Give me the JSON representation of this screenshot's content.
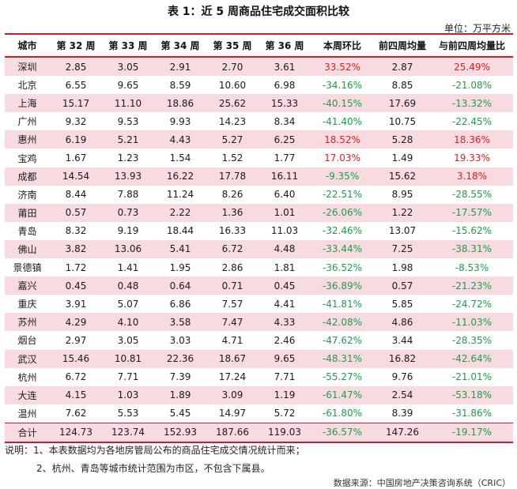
{
  "title": "表 1：近 5 周商品住宅成交面积比较",
  "unit": "单位：万平方米",
  "headers": [
    "城市",
    "第 32 周",
    "第 33 周",
    "第 34 周",
    "第 35 周",
    "第 36 周",
    "本周环比",
    "前四周均量",
    "与前四周均量比"
  ],
  "rows": [
    [
      "深圳",
      "2.85",
      "3.05",
      "2.91",
      "2.70",
      "3.61",
      "33.52%",
      "2.87",
      "25.49%"
    ],
    [
      "北京",
      "6.55",
      "9.65",
      "8.59",
      "10.60",
      "6.98",
      "-34.16%",
      "8.85",
      "-21.08%"
    ],
    [
      "上海",
      "15.17",
      "11.10",
      "18.86",
      "25.62",
      "15.33",
      "-40.15%",
      "17.69",
      "-13.32%"
    ],
    [
      "广州",
      "9.32",
      "9.53",
      "9.93",
      "14.23",
      "8.34",
      "-41.40%",
      "10.75",
      "-22.45%"
    ],
    [
      "惠州",
      "6.19",
      "5.21",
      "4.43",
      "5.27",
      "6.25",
      "18.52%",
      "5.28",
      "18.36%"
    ],
    [
      "宝鸡",
      "1.67",
      "1.23",
      "1.54",
      "1.52",
      "1.77",
      "17.03%",
      "1.49",
      "19.33%"
    ],
    [
      "成都",
      "14.54",
      "13.93",
      "16.22",
      "17.78",
      "16.11",
      "-9.35%",
      "15.62",
      "3.18%"
    ],
    [
      "济南",
      "8.44",
      "7.88",
      "11.24",
      "8.26",
      "6.40",
      "-22.51%",
      "8.95",
      "-28.55%"
    ],
    [
      "莆田",
      "0.57",
      "0.73",
      "2.22",
      "1.36",
      "1.01",
      "-26.06%",
      "1.22",
      "-17.57%"
    ],
    [
      "青岛",
      "8.32",
      "9.19",
      "18.44",
      "16.33",
      "11.03",
      "-32.46%",
      "13.07",
      "-15.62%"
    ],
    [
      "佛山",
      "3.82",
      "13.06",
      "5.41",
      "6.72",
      "4.48",
      "-33.44%",
      "7.25",
      "-38.31%"
    ],
    [
      "景德镇",
      "1.72",
      "1.41",
      "1.95",
      "2.86",
      "1.81",
      "-36.52%",
      "1.98",
      "-8.53%"
    ],
    [
      "嘉兴",
      "0.45",
      "0.48",
      "0.64",
      "0.71",
      "0.45",
      "-36.89%",
      "0.57",
      "-21.23%"
    ],
    [
      "重庆",
      "3.91",
      "5.07",
      "6.86",
      "7.57",
      "4.41",
      "-41.81%",
      "5.85",
      "-24.72%"
    ],
    [
      "苏州",
      "4.29",
      "4.10",
      "3.58",
      "7.47",
      "4.33",
      "-42.08%",
      "4.86",
      "-11.03%"
    ],
    [
      "烟台",
      "2.97",
      "3.05",
      "3.03",
      "4.71",
      "2.46",
      "-47.62%",
      "3.44",
      "-28.35%"
    ],
    [
      "武汉",
      "15.46",
      "10.81",
      "22.36",
      "18.67",
      "9.65",
      "-48.31%",
      "16.82",
      "-42.64%"
    ],
    [
      "杭州",
      "6.72",
      "7.71",
      "7.39",
      "17.24",
      "7.71",
      "-55.27%",
      "9.76",
      "-21.01%"
    ],
    [
      "大连",
      "4.15",
      "1.03",
      "1.89",
      "3.09",
      "1.19",
      "-61.47%",
      "2.54",
      "-53.18%"
    ],
    [
      "温州",
      "7.62",
      "5.53",
      "5.45",
      "14.97",
      "5.72",
      "-61.80%",
      "8.39",
      "-31.86%"
    ],
    [
      "合计",
      "124.73",
      "123.74",
      "152.93",
      "187.66",
      "119.03",
      "-36.57%",
      "147.26",
      "-19.17%"
    ]
  ],
  "notes": [
    "说明：1、本表数据均为各地房管局公布的商品住宅成交情况统计而来；",
    "2、杭州、青岛等城市统计范围为市区，不包含下属县。"
  ],
  "source": "数据来源：中国房地产决策咨询系统（CRIC）",
  "colors": {
    "accent": "#c0202a",
    "band": "#f7dbe0",
    "up": "#e02020",
    "down": "#1e9c4a"
  }
}
